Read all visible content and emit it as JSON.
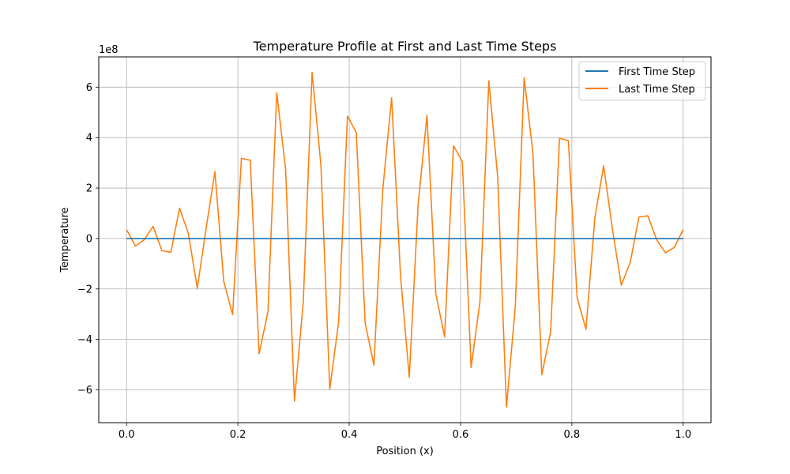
{
  "chart_data": {
    "type": "line",
    "title": "Temperature Profile at First and Last Time Steps",
    "xlabel": "Position (x)",
    "ylabel": "Temperature",
    "y_scale_label": "1e8",
    "xlim": [
      -0.05,
      1.05
    ],
    "ylim": [
      -7.3,
      7.2
    ],
    "x_ticks": [
      0.0,
      0.2,
      0.4,
      0.6,
      0.8,
      1.0
    ],
    "x_tick_labels": [
      "0.0",
      "0.2",
      "0.4",
      "0.6",
      "0.8",
      "1.0"
    ],
    "y_ticks": [
      -6,
      -4,
      -2,
      0,
      2,
      4,
      6
    ],
    "y_tick_labels": [
      "−6",
      "−4",
      "−2",
      "0",
      "2",
      "4",
      "6"
    ],
    "grid": true,
    "legend_position": "top-right",
    "series": [
      {
        "name": "First Time Step",
        "color": "#1f77b4",
        "x": [
          0.0,
          1.0
        ],
        "y": [
          0,
          0
        ]
      },
      {
        "name": "Last Time Step",
        "color": "#ff7f0e",
        "x": [
          0.0,
          0.0159,
          0.0317,
          0.0476,
          0.0635,
          0.0794,
          0.0952,
          0.1111,
          0.127,
          0.1429,
          0.1587,
          0.1746,
          0.1905,
          0.2063,
          0.2222,
          0.2381,
          0.254,
          0.2698,
          0.2857,
          0.3016,
          0.3175,
          0.3333,
          0.3492,
          0.3651,
          0.381,
          0.3968,
          0.4127,
          0.4286,
          0.4444,
          0.4603,
          0.4762,
          0.4921,
          0.5079,
          0.5238,
          0.5397,
          0.5556,
          0.5714,
          0.5873,
          0.6032,
          0.619,
          0.6349,
          0.6508,
          0.6667,
          0.6825,
          0.6984,
          0.7143,
          0.7302,
          0.746,
          0.7619,
          0.7778,
          0.7937,
          0.8095,
          0.8254,
          0.8413,
          0.8571,
          0.873,
          0.8889,
          0.9048,
          0.9206,
          0.9365,
          0.9524,
          0.9683,
          0.9841,
          1.0
        ],
        "y": [
          0.35,
          -0.3,
          -0.05,
          0.48,
          -0.48,
          -0.55,
          1.2,
          0.2,
          -1.97,
          0.4,
          2.65,
          -1.7,
          -3.02,
          3.18,
          3.1,
          -4.57,
          -2.9,
          5.78,
          2.75,
          -6.45,
          -2.5,
          6.58,
          2.9,
          -5.97,
          -3.3,
          4.85,
          4.2,
          -3.35,
          -5.02,
          1.95,
          5.58,
          -1.45,
          -5.5,
          1.35,
          4.88,
          -2.2,
          -3.9,
          3.68,
          3.05,
          -5.12,
          -2.5,
          6.25,
          2.45,
          -6.68,
          -2.7,
          6.38,
          3.35,
          -5.4,
          -3.7,
          3.97,
          3.88,
          -2.35,
          -3.6,
          0.82,
          2.88,
          0.35,
          -1.85,
          -0.95,
          0.85,
          0.9,
          -0.05,
          -0.57,
          -0.35,
          0.35
        ]
      }
    ]
  }
}
